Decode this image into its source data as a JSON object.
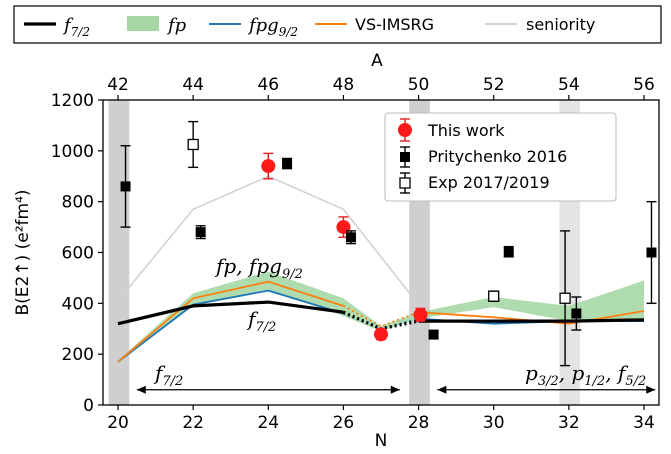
{
  "chart_data": {
    "type": "line",
    "xlabel": "N",
    "x2label": "A",
    "ylabel": "B(E2↑) (e²fm⁴)",
    "xlim": [
      19.6,
      34.4
    ],
    "ylim": [
      0,
      1200
    ],
    "x_ticks": [
      20,
      22,
      24,
      26,
      28,
      30,
      32,
      34
    ],
    "x2_ticks": [
      {
        "N": 20,
        "label": "42"
      },
      {
        "N": 22,
        "label": "44"
      },
      {
        "N": 24,
        "label": "46"
      },
      {
        "N": 26,
        "label": "48"
      },
      {
        "N": 28,
        "label": "50"
      },
      {
        "N": 30,
        "label": "52"
      },
      {
        "N": 32,
        "label": "54"
      },
      {
        "N": 34,
        "label": "56"
      }
    ],
    "y_ticks": [
      0,
      200,
      400,
      600,
      800,
      1000,
      1200
    ],
    "shaded_regions": [
      {
        "x": [
          19.75,
          20.3
        ],
        "color": "#cfcfcf"
      },
      {
        "x": [
          27.75,
          28.3
        ],
        "color": "#cfcfcf"
      },
      {
        "x": [
          31.75,
          32.3
        ],
        "color": "#e4e4e4"
      }
    ],
    "series": [
      {
        "name": "f7/2",
        "kind": "line",
        "color": "#000000",
        "width": 3.2,
        "x": [
          20,
          22,
          24,
          26,
          27,
          28,
          30,
          32,
          34
        ],
        "y": [
          320,
          390,
          405,
          365,
          300,
          330,
          330,
          330,
          335
        ]
      },
      {
        "name": "fp",
        "kind": "band",
        "color": "#a6d8a6",
        "x": [
          20,
          22,
          24,
          26,
          27,
          28,
          30,
          32,
          34
        ],
        "y_low": [
          165,
          390,
          455,
          350,
          290,
          340,
          385,
          330,
          340
        ],
        "y_high": [
          175,
          440,
          525,
          420,
          310,
          365,
          425,
          390,
          490
        ]
      },
      {
        "name": "fpg9/2",
        "kind": "line",
        "color": "#1f77b4",
        "width": 1.8,
        "x": [
          20,
          22,
          24,
          26,
          27,
          28,
          30,
          32,
          34
        ],
        "y": [
          170,
          395,
          450,
          360,
          300,
          340,
          320,
          330,
          330
        ]
      },
      {
        "name": "VS-IMSRG",
        "kind": "line",
        "color": "#ff7f0e",
        "width": 1.8,
        "x": [
          20,
          22,
          24,
          26,
          27,
          28,
          30,
          32,
          34
        ],
        "y": [
          170,
          420,
          485,
          390,
          310,
          365,
          345,
          320,
          370
        ]
      },
      {
        "name": "seniority",
        "kind": "line",
        "color": "#d3d3d3",
        "width": 1.6,
        "x": [
          20,
          22,
          24,
          26,
          28
        ],
        "y": [
          410,
          770,
          900,
          770,
          395
        ]
      }
    ],
    "dashed_segments": [
      {
        "color": "#000000",
        "x": [
          26.4,
          27,
          27.6
        ],
        "y": [
          340,
          300,
          320
        ]
      },
      {
        "color": "#1f77b4",
        "x": [
          26.4,
          27,
          27.6
        ],
        "y": [
          330,
          295,
          310
        ]
      },
      {
        "color": "#ff7f0e",
        "x": [
          26.4,
          27,
          27.6
        ],
        "y": [
          345,
          305,
          320
        ]
      }
    ],
    "markers": [
      {
        "name": "This work",
        "style": "red-circle",
        "points": [
          {
            "x": 24,
            "y": 940,
            "err": 50
          },
          {
            "x": 26,
            "y": 700,
            "err": 40
          },
          {
            "x": 27,
            "y": 278,
            "err": 20
          },
          {
            "x": 28.05,
            "y": 355,
            "err": 25
          }
        ]
      },
      {
        "name": "Pritychenko 2016",
        "style": "black-square",
        "points": [
          {
            "x": 20.2,
            "y": 860,
            "err": 160
          },
          {
            "x": 22.2,
            "y": 680,
            "err": 25
          },
          {
            "x": 24.5,
            "y": 950,
            "err": 20
          },
          {
            "x": 26.2,
            "y": 660,
            "err": 25
          },
          {
            "x": 28.4,
            "y": 277,
            "err": 15
          },
          {
            "x": 30.4,
            "y": 603,
            "err": 20
          },
          {
            "x": 32.2,
            "y": 360,
            "err": 65
          },
          {
            "x": 34.2,
            "y": 600,
            "err": 200
          }
        ]
      },
      {
        "name": "Exp 2017/2019",
        "style": "open-square",
        "points": [
          {
            "x": 22,
            "y": 1025,
            "err": 90
          },
          {
            "x": 30,
            "y": 428,
            "err": 20
          },
          {
            "x": 31.9,
            "y": 420,
            "err": 265
          }
        ]
      }
    ],
    "annotations": [
      {
        "label": "fp, fpg9/2"
      },
      {
        "label": "f7/2"
      },
      {
        "label": "f7/2"
      },
      {
        "label": "p3/2, p1/2, f5/2"
      }
    ],
    "arrows": [
      {
        "from": 20.5,
        "to": 27.5,
        "y": 60
      },
      {
        "from": 28.5,
        "to": 34.3,
        "y": 60
      }
    ],
    "legend_top": [
      "f7/2",
      "fp",
      "fpg9/2",
      "VS-IMSRG",
      "seniority"
    ],
    "legend_inner": [
      "This work",
      "Pritychenko 2016",
      "Exp 2017/2019"
    ]
  }
}
